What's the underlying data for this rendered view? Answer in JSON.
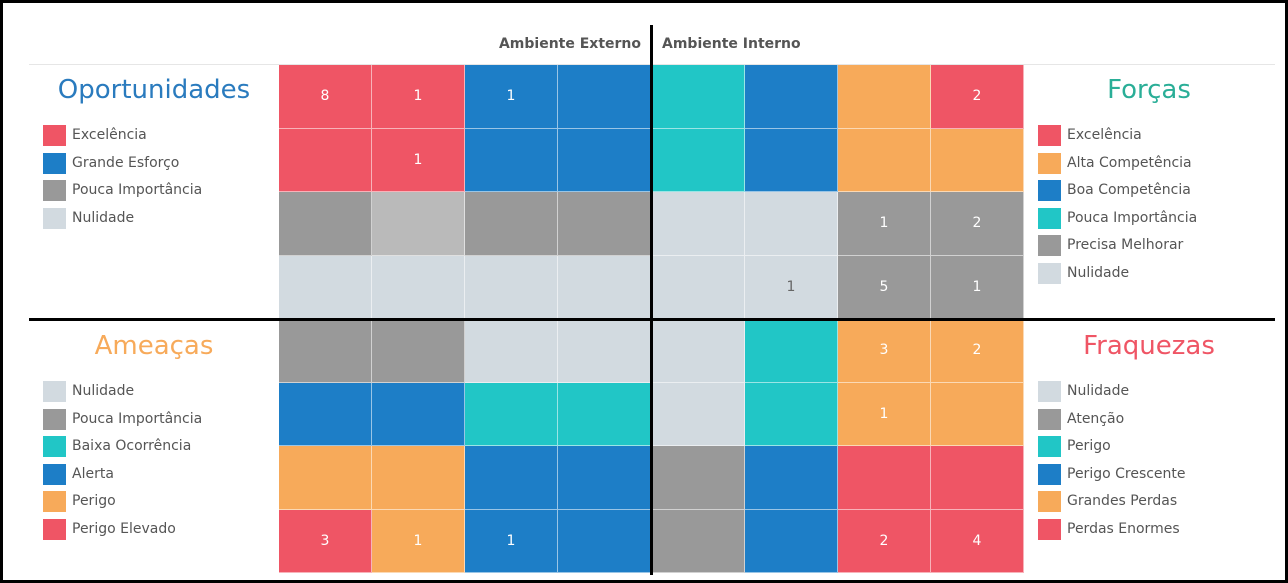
{
  "headers": {
    "external": "Ambiente Externo",
    "internal": "Ambiente Interno"
  },
  "colors": {
    "red": "#EF5565",
    "blue": "#1D7EC7",
    "gray": "#999999",
    "lightgray": "#BABABA",
    "pale": "#D2DAE0",
    "teal": "#21C6C6",
    "orange": "#F7AA5A"
  },
  "quadrants": [
    {
      "id": "oportunidades",
      "title": "Oportunidades",
      "title_color": "#2A7BBE",
      "legend": [
        {
          "label": "Excelência",
          "color": "#EF5565"
        },
        {
          "label": "Grande Esforço",
          "color": "#1D7EC7"
        },
        {
          "label": "Pouca Importância",
          "color": "#999999"
        },
        {
          "label": "Nulidade",
          "color": "#D2DAE0"
        }
      ]
    },
    {
      "id": "forcas",
      "title": "Forças",
      "title_color": "#2AAE97",
      "legend": [
        {
          "label": "Excelência",
          "color": "#EF5565"
        },
        {
          "label": "Alta Competência",
          "color": "#F7AA5A"
        },
        {
          "label": "Boa Competência",
          "color": "#1D7EC7"
        },
        {
          "label": "Pouca Importância",
          "color": "#21C6C6"
        },
        {
          "label": "Precisa Melhorar",
          "color": "#999999"
        },
        {
          "label": "Nulidade",
          "color": "#D2DAE0"
        }
      ]
    },
    {
      "id": "ameacas",
      "title": "Ameaças",
      "title_color": "#F7AA5A",
      "legend": [
        {
          "label": "Nulidade",
          "color": "#D2DAE0"
        },
        {
          "label": "Pouca Importância",
          "color": "#999999"
        },
        {
          "label": "Baixa Ocorrência",
          "color": "#21C6C6"
        },
        {
          "label": "Alerta",
          "color": "#1D7EC7"
        },
        {
          "label": "Perigo",
          "color": "#F7AA5A"
        },
        {
          "label": "Perigo Elevado",
          "color": "#EF5565"
        }
      ]
    },
    {
      "id": "fraquezas",
      "title": "Fraquezas",
      "title_color": "#EF5565",
      "legend": [
        {
          "label": "Nulidade",
          "color": "#D2DAE0"
        },
        {
          "label": "Atenção",
          "color": "#999999"
        },
        {
          "label": "Perigo",
          "color": "#21C6C6"
        },
        {
          "label": "Perigo Crescente",
          "color": "#1D7EC7"
        },
        {
          "label": "Grandes Perdas",
          "color": "#F7AA5A"
        },
        {
          "label": "Perdas Enormes",
          "color": "#EF5565"
        }
      ]
    }
  ],
  "chart_data": {
    "type": "heatmap",
    "rows": 8,
    "cols": 8,
    "cells": [
      [
        "red",
        "red",
        "blue",
        "blue",
        "teal",
        "blue",
        "orange",
        "red"
      ],
      [
        "red",
        "red",
        "blue",
        "blue",
        "teal",
        "blue",
        "orange",
        "orange"
      ],
      [
        "gray",
        "lightgray",
        "gray",
        "gray",
        "pale",
        "pale",
        "gray",
        "gray"
      ],
      [
        "pale",
        "pale",
        "pale",
        "pale",
        "pale",
        "pale",
        "gray",
        "gray"
      ],
      [
        "gray",
        "gray",
        "pale",
        "pale",
        "pale",
        "teal",
        "orange",
        "orange"
      ],
      [
        "blue",
        "blue",
        "teal",
        "teal",
        "pale",
        "teal",
        "orange",
        "orange"
      ],
      [
        "orange",
        "orange",
        "blue",
        "blue",
        "gray",
        "blue",
        "red",
        "red"
      ],
      [
        "red",
        "orange",
        "blue",
        "blue",
        "gray",
        "blue",
        "red",
        "red"
      ]
    ],
    "labels": [
      [
        "8",
        "1",
        "1",
        "",
        "",
        "",
        "",
        "2"
      ],
      [
        "",
        "1",
        "",
        "",
        "",
        "",
        "",
        ""
      ],
      [
        "",
        "",
        "",
        "",
        "",
        "",
        "1",
        "2"
      ],
      [
        "",
        "",
        "",
        "",
        "",
        "1",
        "5",
        "1"
      ],
      [
        "",
        "",
        "",
        "",
        "",
        "",
        "3",
        "2"
      ],
      [
        "",
        "",
        "",
        "",
        "",
        "",
        "1",
        ""
      ],
      [
        "",
        "",
        "",
        "",
        "",
        "",
        "",
        ""
      ],
      [
        "3",
        "1",
        "1",
        "",
        "",
        "",
        "2",
        "4"
      ]
    ]
  }
}
